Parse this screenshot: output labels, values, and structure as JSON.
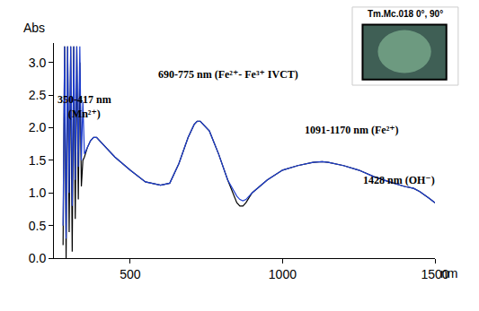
{
  "chart_data": {
    "type": "line",
    "x_label": "nm",
    "y_label": "Abs",
    "inset_label": "Tm.Mc.018 0°, 90°",
    "x": [
      280,
      285,
      290,
      295,
      300,
      305,
      310,
      315,
      320,
      325,
      330,
      335,
      340,
      345,
      350,
      360,
      370,
      380,
      390,
      400,
      420,
      450,
      500,
      550,
      600,
      630,
      660,
      690,
      710,
      720,
      730,
      740,
      760,
      790,
      820,
      850,
      860,
      870,
      880,
      900,
      950,
      1000,
      1050,
      1100,
      1130,
      1150,
      1200,
      1250,
      1300,
      1350,
      1400,
      1430,
      1450,
      1480,
      1500
    ],
    "series": [
      {
        "color": "#000000",
        "values": [
          0.2,
          3.25,
          0.0,
          3.25,
          0.4,
          3.25,
          0.1,
          3.25,
          0.6,
          3.25,
          0.9,
          3.0,
          1.1,
          1.5,
          1.55,
          1.7,
          1.8,
          1.85,
          1.85,
          1.8,
          1.7,
          1.55,
          1.35,
          1.17,
          1.12,
          1.15,
          1.45,
          1.85,
          2.05,
          2.1,
          2.1,
          2.05,
          1.95,
          1.6,
          1.2,
          0.85,
          0.8,
          0.8,
          0.85,
          1.0,
          1.2,
          1.35,
          1.42,
          1.47,
          1.48,
          1.47,
          1.42,
          1.35,
          1.25,
          1.17,
          1.1,
          1.07,
          1.02,
          0.92,
          0.85
        ]
      },
      {
        "color": "#1f3fd0",
        "values": [
          0.5,
          3.25,
          0.3,
          3.25,
          1.0,
          3.25,
          0.8,
          3.25,
          1.2,
          3.25,
          1.4,
          3.25,
          1.5,
          2.4,
          1.6,
          1.7,
          1.8,
          1.85,
          1.85,
          1.8,
          1.7,
          1.55,
          1.35,
          1.17,
          1.12,
          1.15,
          1.45,
          1.85,
          2.05,
          2.1,
          2.1,
          2.05,
          1.95,
          1.6,
          1.2,
          0.95,
          0.9,
          0.88,
          0.9,
          1.0,
          1.2,
          1.35,
          1.42,
          1.47,
          1.48,
          1.47,
          1.42,
          1.35,
          1.25,
          1.17,
          1.1,
          1.07,
          1.02,
          0.92,
          0.85
        ]
      }
    ],
    "annotations": [
      {
        "lines": [
          "350-417 nm",
          "(Mn²⁺)"
        ],
        "x": 349,
        "y": 2.33
      },
      {
        "lines": [
          "690-775 nm (Fe²⁺- Fe³⁺ IVCT)"
        ],
        "x": 822,
        "y": 2.82
      },
      {
        "lines": [
          "1091-1170 nm (Fe²⁺)"
        ],
        "x": 1228,
        "y": 1.97
      },
      {
        "lines": [
          "1428 nm (OH⁻)"
        ],
        "x": 1382,
        "y": 1.19
      }
    ],
    "xlim": [
      250,
      1500
    ],
    "ylim": [
      0,
      3.3
    ],
    "xticks": [
      500,
      1000,
      1500
    ],
    "yticks": [
      {
        "value": 0,
        "label": "0.0"
      },
      0.5,
      {
        "value": 1,
        "label": "1.0"
      },
      1.5,
      {
        "value": 2,
        "label": "2.0"
      },
      2.5,
      {
        "value": 3,
        "label": "3.0"
      }
    ],
    "grid": false
  }
}
